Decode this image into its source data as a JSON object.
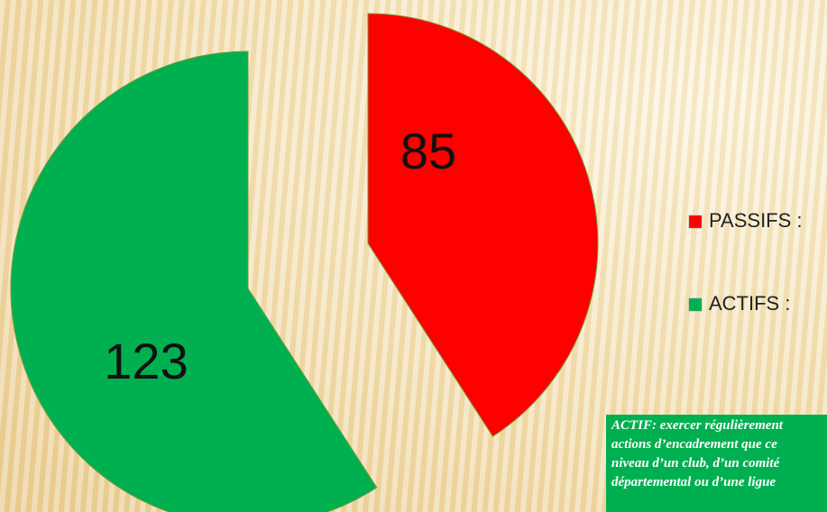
{
  "chart_data": {
    "type": "pie",
    "categories": [
      "PASSIFS :",
      "ACTIFS :"
    ],
    "values": [
      85,
      123
    ],
    "colors": [
      "#ff0000",
      "#00b050"
    ],
    "legend": "right",
    "annotation": [
      "ACTIF: exercer régulièrement",
      "actions d’encadrement que ce",
      "niveau d’un club, d’un comité",
      "départemental ou d’une ligue"
    ]
  }
}
